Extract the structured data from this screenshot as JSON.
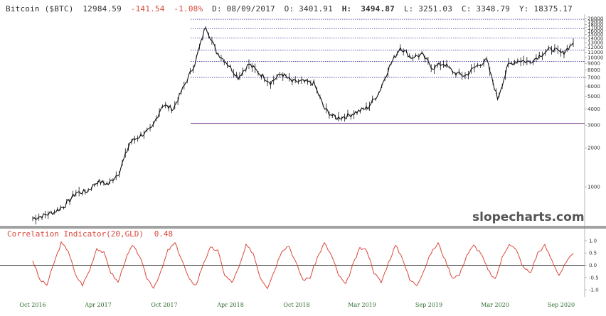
{
  "header": {
    "title": "Bitcoin ($BTC)",
    "last": "12984.59",
    "change": "-141.54",
    "change_pct": "-1.08%",
    "date": "D: 08/09/2017",
    "open": "O:  3401.91",
    "high_label": "H:",
    "high": "3494.87",
    "low": "L:  3251.03",
    "close": "C:  3348.79",
    "y": "Y: 18375.17"
  },
  "watermark": "slopecharts.com",
  "indicator": {
    "label": "Correlation Indicator(20,GLD)",
    "value": "0.48"
  },
  "colors": {
    "price": "#111111",
    "indicator": "#d9483b",
    "level_line": "#3b3ba8",
    "support_line": "#7a3c8c",
    "xtick": "#2e6b2e"
  },
  "chart_data": [
    {
      "type": "line",
      "title": "Bitcoin ($BTC)",
      "y_scale": "log",
      "ylim": [
        500,
        20500
      ],
      "y_ticks": [
        1000,
        2000,
        3000,
        4000,
        5000,
        6000,
        7000,
        8000,
        9000,
        10000,
        11000,
        12000,
        13000,
        14000,
        15000,
        16000,
        17000,
        18000,
        19000,
        20000
      ],
      "y_tick_labels": [
        "1000",
        "2000",
        "3000",
        "4000",
        "5000",
        "6000",
        "7000",
        "8000",
        "9000",
        "10000",
        "11000",
        "12000",
        "13000",
        "14000",
        "15000",
        "16000",
        "17000",
        "18000",
        "19000",
        "20000"
      ],
      "horizontal_levels": [
        19700,
        16700,
        14100,
        11400,
        9300,
        7000
      ],
      "support_level": 3100,
      "series": [
        {
          "x": [
            "2016-08",
            "2016-09",
            "2016-10",
            "2016-11",
            "2016-12",
            "2017-01",
            "2017-02",
            "2017-03",
            "2017-04",
            "2017-05",
            "2017-06",
            "2017-07",
            "2017-08",
            "2017-09",
            "2017-10",
            "2017-11",
            "2017-12",
            "2018-01",
            "2018-02",
            "2018-03",
            "2018-04",
            "2018-05",
            "2018-06",
            "2018-07",
            "2018-08",
            "2018-09",
            "2018-10",
            "2018-11",
            "2018-12",
            "2019-01",
            "2019-02",
            "2019-03",
            "2019-04",
            "2019-05",
            "2019-06",
            "2019-07",
            "2019-08",
            "2019-09",
            "2019-10",
            "2019-11",
            "2019-12",
            "2020-01",
            "2020-02",
            "2020-03",
            "2020-04",
            "2020-05",
            "2020-06",
            "2020-07",
            "2020-08",
            "2020-09",
            "2020-10"
          ],
          "values": [
            570,
            600,
            640,
            720,
            900,
            920,
            1100,
            1050,
            1300,
            2200,
            2500,
            2800,
            4300,
            4000,
            6000,
            9000,
            17500,
            11000,
            9000,
            7000,
            8900,
            7500,
            6400,
            7500,
            6500,
            6500,
            6300,
            4000,
            3400,
            3500,
            3800,
            4100,
            5300,
            8500,
            12000,
            10000,
            10500,
            8300,
            9000,
            7600,
            7200,
            8500,
            9500,
            4800,
            8800,
            9500,
            9200,
            10500,
            11700,
            10700,
            13000
          ]
        }
      ]
    },
    {
      "type": "line",
      "title": "Correlation Indicator(20,GLD)",
      "ylim": [
        -1.2,
        1.2
      ],
      "y_ticks": [
        -1.0,
        -0.5,
        0.0,
        0.5,
        1.0
      ],
      "y_tick_labels": [
        "-1.0",
        "-0.5",
        "0.0",
        "0.5",
        "1.0"
      ],
      "x_tick_labels": [
        "Oct 2016",
        "Apr 2017",
        "Oct 2017",
        "Apr 2018",
        "Oct 2018",
        "Mar 2019",
        "Sep 2019",
        "Mar 2020",
        "Sep 2020"
      ],
      "series": [
        {
          "values": [
            0.2,
            -0.6,
            -0.8,
            0.1,
            0.9,
            0.6,
            -0.4,
            -0.8,
            -0.2,
            0.7,
            0.5,
            -0.3,
            -0.7,
            0.2,
            0.8,
            0.4,
            -0.5,
            -0.9,
            -0.3,
            0.6,
            0.9,
            0.2,
            -0.6,
            -0.8,
            0.1,
            0.7,
            0.6,
            -0.4,
            -0.7,
            -0.1,
            0.8,
            0.5,
            -0.5,
            -0.9,
            -0.2,
            0.6,
            0.8,
            0.1,
            -0.6,
            -0.5,
            0.3,
            0.9,
            0.4,
            -0.4,
            -0.8,
            0.0,
            0.7,
            0.6,
            -0.3,
            -0.7,
            0.1,
            0.8,
            0.3,
            -0.6,
            -0.8,
            -0.2,
            0.5,
            0.9,
            0.2,
            -0.5,
            -0.4,
            0.4,
            0.8,
            0.5,
            -0.2,
            -0.6,
            0.3,
            0.9,
            0.6,
            -0.1,
            -0.3,
            0.5,
            0.8,
            0.2,
            -0.4,
            0.1,
            0.48
          ]
        }
      ]
    }
  ]
}
